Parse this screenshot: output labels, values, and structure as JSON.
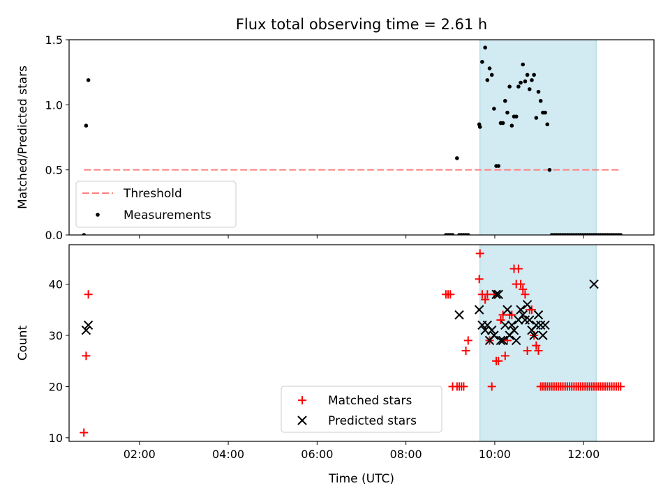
{
  "figure": {
    "title": "Flux total observing time = 2.61 h",
    "xlabel": "Time (UTC)"
  },
  "chart_data": [
    {
      "type": "scatter",
      "panel": "top",
      "ylabel": "Matched/Predicted stars",
      "xlim": [
        "00:25",
        "13:35"
      ],
      "ylim": [
        0,
        1.5
      ],
      "yticks": [
        0.0,
        0.5,
        1.0,
        1.5
      ],
      "ytick_labels": [
        "0.0",
        "0.5",
        "1.0",
        "1.5"
      ],
      "xticks": [
        "02:00",
        "04:00",
        "06:00",
        "08:00",
        "10:00",
        "12:00"
      ],
      "xtick_labels_shown": false,
      "legend_position": "lower-left",
      "highlight_span": {
        "x": [
          "09:40",
          "12:17"
        ],
        "color": "#add8e6"
      },
      "series": [
        {
          "name": "Threshold",
          "kind": "dashed-line",
          "color": "#ff7f7f",
          "x": [
            "00:45",
            "12:48"
          ],
          "y": [
            0.5,
            0.5
          ]
        },
        {
          "name": "Measurements",
          "kind": "points",
          "color": "#000000",
          "x": [
            "00:45",
            "00:48",
            "00:51",
            "08:54",
            "08:57",
            "09:00",
            "09:03",
            "09:09",
            "09:12",
            "09:15",
            "09:18",
            "09:21",
            "09:24",
            "09:39",
            "09:40",
            "09:43",
            "09:47",
            "09:50",
            "09:53",
            "09:56",
            "09:59",
            "10:02",
            "10:05",
            "10:08",
            "10:11",
            "10:14",
            "10:17",
            "10:20",
            "10:23",
            "10:26",
            "10:29",
            "10:32",
            "10:35",
            "10:38",
            "10:41",
            "10:44",
            "10:47",
            "10:50",
            "10:53",
            "10:56",
            "10:59",
            "11:02",
            "11:05",
            "11:08",
            "11:11",
            "11:14",
            "11:17",
            "11:20",
            "11:23",
            "11:26",
            "11:29",
            "11:32",
            "11:35",
            "11:38",
            "11:41",
            "11:44",
            "11:47",
            "11:50",
            "11:53",
            "11:56",
            "11:59",
            "12:02",
            "12:05",
            "12:08",
            "12:11",
            "12:14",
            "12:17",
            "12:20",
            "12:23",
            "12:26",
            "12:29",
            "12:32",
            "12:35",
            "12:38",
            "12:41",
            "12:44",
            "12:47",
            "12:50"
          ],
          "y": [
            0,
            0.84,
            1.19,
            0,
            0,
            0,
            0,
            0.59,
            0,
            0,
            0,
            0,
            0,
            0.85,
            0.83,
            1.33,
            1.44,
            1.19,
            1.28,
            1.23,
            0.97,
            0.53,
            0.53,
            0.86,
            0.86,
            1.03,
            0.94,
            1.14,
            0.84,
            0.91,
            0.91,
            1.14,
            1.17,
            1.31,
            1.18,
            1.23,
            1.12,
            1.19,
            1.23,
            0.9,
            1.1,
            1.03,
            0.94,
            0.94,
            0.85,
            0.5,
            0,
            0,
            0,
            0,
            0,
            0,
            0,
            0,
            0,
            0,
            0,
            0,
            0,
            0,
            0,
            0,
            0,
            0,
            0,
            0,
            0,
            0,
            0,
            0,
            0,
            0,
            0,
            0,
            0,
            0,
            0,
            0
          ]
        }
      ]
    },
    {
      "type": "scatter",
      "panel": "bottom",
      "ylabel": "Count",
      "xlim": [
        "00:25",
        "13:35"
      ],
      "ylim": [
        9.3,
        47.7
      ],
      "yticks": [
        10,
        20,
        30,
        40
      ],
      "ytick_labels": [
        "10",
        "20",
        "30",
        "40"
      ],
      "xticks": [
        "02:00",
        "04:00",
        "06:00",
        "08:00",
        "10:00",
        "12:00"
      ],
      "xtick_labels": [
        "02:00",
        "04:00",
        "06:00",
        "08:00",
        "10:00",
        "12:00"
      ],
      "legend_position": "lower-center",
      "highlight_span": {
        "x": [
          "09:40",
          "12:17"
        ],
        "color": "#add8e6"
      },
      "series": [
        {
          "name": "Matched stars",
          "marker": "plus",
          "color": "#ff0000",
          "x": [
            "00:45",
            "00:48",
            "00:51",
            "08:54",
            "08:57",
            "09:00",
            "09:03",
            "09:09",
            "09:12",
            "09:15",
            "09:18",
            "09:21",
            "09:24",
            "09:39",
            "09:40",
            "09:43",
            "09:47",
            "09:50",
            "09:53",
            "09:56",
            "09:59",
            "10:02",
            "10:05",
            "10:08",
            "10:11",
            "10:14",
            "10:17",
            "10:20",
            "10:23",
            "10:26",
            "10:29",
            "10:32",
            "10:35",
            "10:38",
            "10:41",
            "10:44",
            "10:47",
            "10:50",
            "10:53",
            "10:56",
            "10:59",
            "11:02",
            "11:05",
            "11:08",
            "11:11",
            "11:14",
            "11:17",
            "11:20",
            "11:23",
            "11:26",
            "11:29",
            "11:32",
            "11:35",
            "11:38",
            "11:41",
            "11:44",
            "11:47",
            "11:50",
            "11:53",
            "11:56",
            "11:59",
            "12:02",
            "12:05",
            "12:08",
            "12:11",
            "12:14",
            "12:17",
            "12:20",
            "12:23",
            "12:26",
            "12:29",
            "12:32",
            "12:35",
            "12:38",
            "12:41",
            "12:44",
            "12:47",
            "12:50"
          ],
          "y": [
            11,
            26,
            38,
            38,
            38,
            38,
            20,
            20,
            20,
            20,
            20,
            27,
            29,
            41,
            46,
            38,
            37,
            38,
            29,
            20,
            38,
            25,
            25,
            33,
            34,
            26,
            29,
            34,
            34,
            43,
            40,
            43,
            40,
            39,
            38,
            27,
            35,
            35,
            30,
            28,
            27,
            20,
            20,
            20,
            20,
            20,
            20,
            20,
            20,
            20,
            20,
            20,
            20,
            20,
            20,
            20,
            20,
            20,
            20,
            20,
            20,
            20,
            20,
            20,
            20,
            20,
            20,
            20,
            20,
            20,
            20,
            20,
            20,
            20,
            20,
            20,
            20,
            20
          ]
        },
        {
          "name": "Predicted stars",
          "marker": "x",
          "color": "#000000",
          "x": [
            "00:48",
            "00:51",
            "09:12",
            "09:39",
            "09:43",
            "09:47",
            "09:50",
            "09:53",
            "09:56",
            "09:59",
            "10:02",
            "10:05",
            "10:08",
            "10:11",
            "10:14",
            "10:17",
            "10:20",
            "10:23",
            "10:26",
            "10:29",
            "10:32",
            "10:35",
            "10:38",
            "10:41",
            "10:44",
            "10:47",
            "10:50",
            "10:53",
            "10:56",
            "10:59",
            "11:02",
            "11:05",
            "11:08",
            "12:14"
          ],
          "y": [
            31,
            32,
            34,
            35,
            32,
            31,
            32,
            29,
            31,
            30,
            38,
            38,
            29,
            29,
            32,
            35,
            30,
            32,
            31,
            29,
            33,
            35,
            34,
            33,
            36,
            33,
            31,
            30,
            32,
            34,
            32,
            30,
            32,
            40
          ]
        }
      ]
    }
  ]
}
